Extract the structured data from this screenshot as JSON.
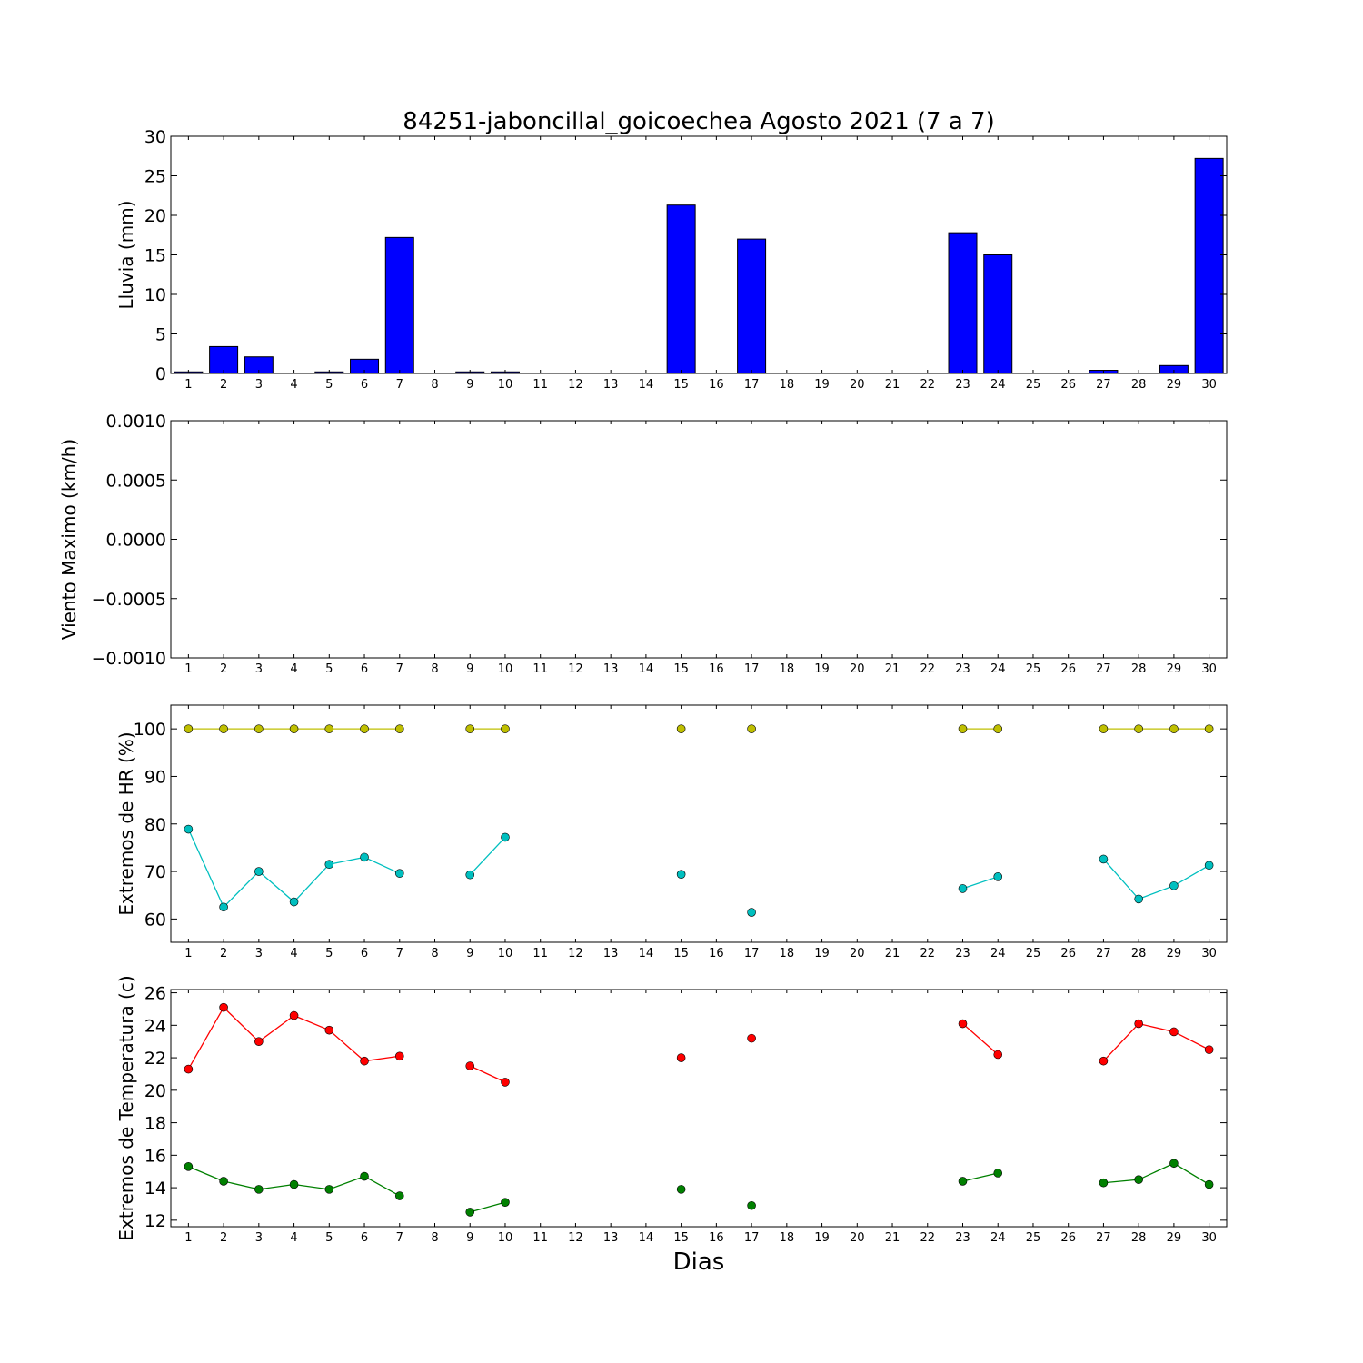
{
  "title": "84251-jaboncillal_goicoechea Agosto 2021  (7 a 7)",
  "xlabel": "Dias",
  "colors": {
    "rain_bar": "#0000ff",
    "hr_max": "#bfbf00",
    "hr_min": "#00bfbf",
    "temp_max": "#ff0000",
    "temp_min": "#008000"
  },
  "chart_data": [
    {
      "id": "rain",
      "type": "bar",
      "ylabel": "Lluvia (mm)",
      "ylim": [
        0,
        30
      ],
      "yticks": [
        0,
        5,
        10,
        15,
        20,
        25,
        30
      ],
      "x": [
        1,
        2,
        3,
        4,
        5,
        6,
        7,
        8,
        9,
        10,
        11,
        12,
        13,
        14,
        15,
        16,
        17,
        18,
        19,
        20,
        21,
        22,
        23,
        24,
        25,
        26,
        27,
        28,
        29,
        30
      ],
      "series": [
        {
          "values": [
            0.2,
            3.4,
            2.1,
            0,
            0.2,
            1.8,
            17.2,
            0,
            0.2,
            0.2,
            0,
            0,
            0,
            0,
            21.3,
            0,
            17.0,
            0,
            0,
            0,
            0,
            0,
            17.8,
            15.0,
            0,
            0,
            0.4,
            0,
            1.0,
            27.2
          ]
        }
      ]
    },
    {
      "id": "wind",
      "type": "line",
      "ylabel": "Viento Maximo (km/h)",
      "ylim": [
        -0.001,
        0.001
      ],
      "yticks": [
        "−0.0010",
        "−0.0005",
        "0.0000",
        "0.0005",
        "0.0010"
      ],
      "x": [
        1,
        2,
        3,
        4,
        5,
        6,
        7,
        8,
        9,
        10,
        11,
        12,
        13,
        14,
        15,
        16,
        17,
        18,
        19,
        20,
        21,
        22,
        23,
        24,
        25,
        26,
        27,
        28,
        29,
        30
      ],
      "series": []
    },
    {
      "id": "hr",
      "type": "line",
      "ylabel": "Extremos de HR (%)",
      "ylim": [
        55.1,
        105
      ],
      "yticks": [
        60,
        70,
        80,
        90,
        100
      ],
      "x": [
        1,
        2,
        3,
        4,
        5,
        6,
        7,
        8,
        9,
        10,
        11,
        12,
        13,
        14,
        15,
        16,
        17,
        18,
        19,
        20,
        21,
        22,
        23,
        24,
        25,
        26,
        27,
        28,
        29,
        30
      ],
      "series": [
        {
          "color_key": "hr_max",
          "values": [
            100,
            100,
            100,
            100,
            100,
            100,
            100,
            null,
            100,
            100,
            null,
            null,
            null,
            null,
            100,
            null,
            100,
            null,
            null,
            null,
            null,
            null,
            100,
            100,
            null,
            null,
            100,
            100,
            100,
            100
          ]
        },
        {
          "color_key": "hr_min",
          "values": [
            78.9,
            62.5,
            70.0,
            63.6,
            71.5,
            73.0,
            69.6,
            null,
            69.3,
            77.2,
            null,
            null,
            null,
            null,
            69.4,
            null,
            61.4,
            null,
            null,
            null,
            null,
            null,
            66.4,
            68.9,
            null,
            null,
            72.6,
            64.2,
            67.0,
            71.3
          ]
        }
      ]
    },
    {
      "id": "temp",
      "type": "line",
      "ylabel": "Extremos de Temperatura (c)",
      "ylim": [
        11.6,
        26.2
      ],
      "yticks": [
        12,
        14,
        16,
        18,
        20,
        22,
        24,
        26
      ],
      "x": [
        1,
        2,
        3,
        4,
        5,
        6,
        7,
        8,
        9,
        10,
        11,
        12,
        13,
        14,
        15,
        16,
        17,
        18,
        19,
        20,
        21,
        22,
        23,
        24,
        25,
        26,
        27,
        28,
        29,
        30
      ],
      "series": [
        {
          "color_key": "temp_max",
          "values": [
            21.3,
            25.1,
            23.0,
            24.6,
            23.7,
            21.8,
            22.1,
            null,
            21.5,
            20.5,
            null,
            null,
            null,
            null,
            22.0,
            null,
            23.2,
            null,
            null,
            null,
            null,
            null,
            24.1,
            22.2,
            null,
            null,
            21.8,
            24.1,
            23.6,
            22.5
          ]
        },
        {
          "color_key": "temp_min",
          "values": [
            15.3,
            14.4,
            13.9,
            14.2,
            13.9,
            14.7,
            13.5,
            null,
            12.5,
            13.1,
            null,
            null,
            null,
            null,
            13.9,
            null,
            12.9,
            null,
            null,
            null,
            null,
            null,
            14.4,
            14.9,
            null,
            null,
            14.3,
            14.5,
            15.5,
            14.2
          ]
        }
      ]
    }
  ]
}
